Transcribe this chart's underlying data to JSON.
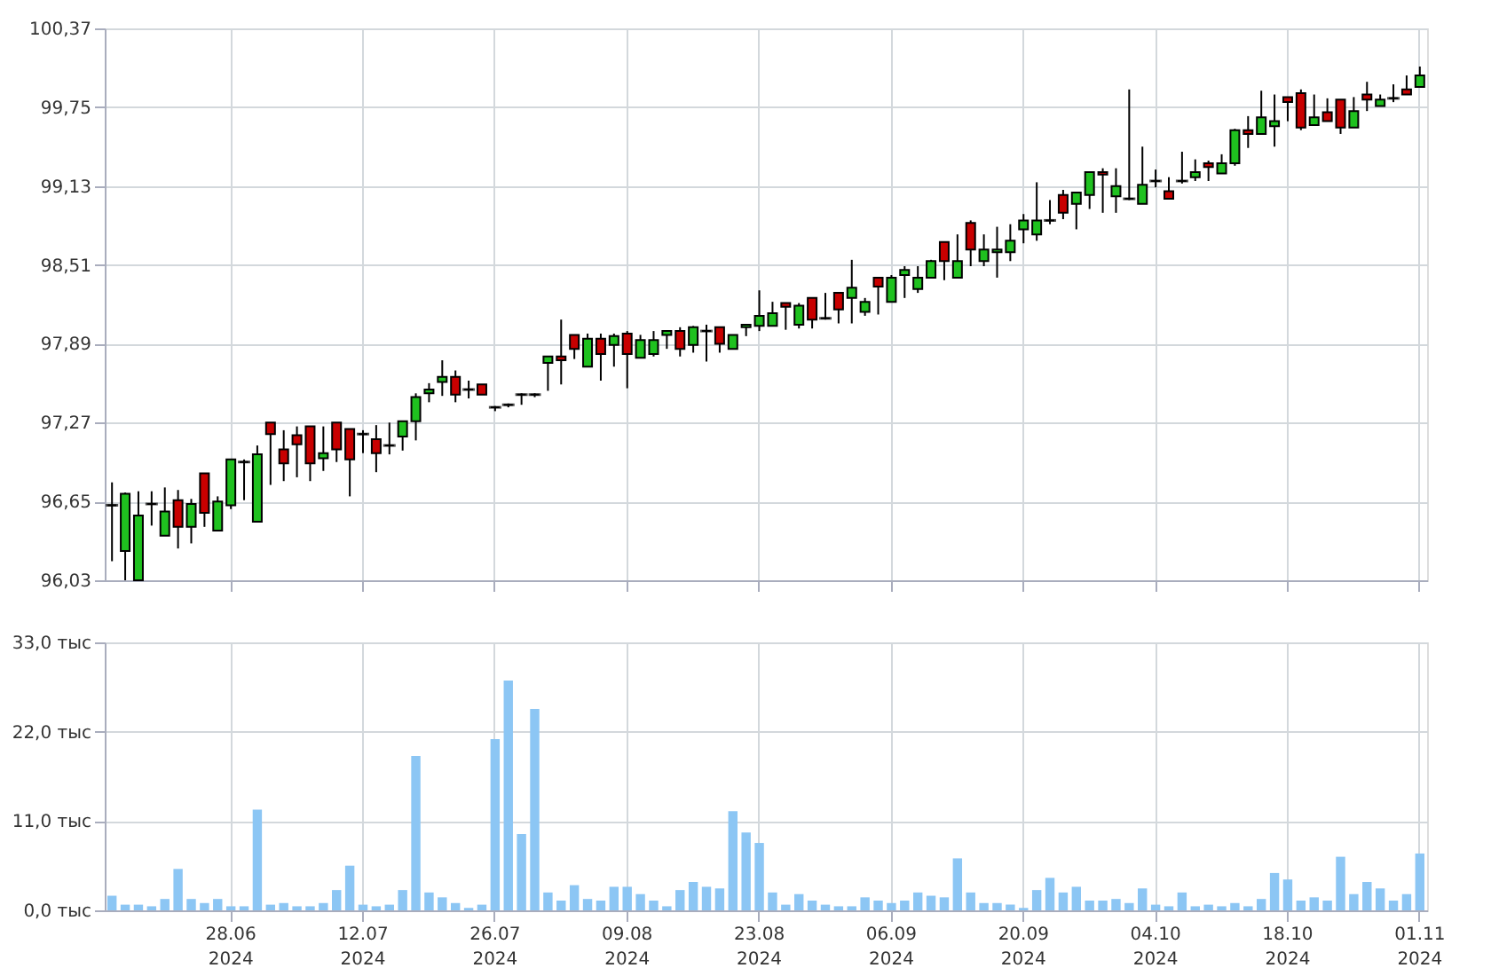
{
  "chart_data": [
    {
      "type": "candlestick",
      "tick_labels": "y",
      "grid": true,
      "categories": [
        null,
        null,
        null,
        null,
        null,
        null,
        null,
        null,
        null,
        null,
        null,
        null,
        null,
        null,
        null,
        null,
        null,
        null,
        null,
        null,
        null,
        null,
        null,
        null,
        null,
        null,
        null,
        null,
        null,
        null,
        null,
        null,
        null,
        null,
        null,
        null,
        null,
        null,
        null,
        null,
        null,
        null,
        null,
        null,
        null,
        null,
        null,
        null,
        null,
        null,
        null,
        null,
        null,
        null,
        null,
        null,
        null,
        null,
        null,
        null,
        null,
        null,
        null,
        null,
        null,
        null,
        null,
        null,
        null,
        null,
        null,
        null,
        null,
        null,
        null,
        null,
        null,
        null,
        null,
        null,
        null,
        null,
        null,
        null,
        null,
        null,
        null,
        null,
        null,
        null,
        null,
        null,
        null,
        null,
        null,
        null,
        null,
        null,
        null,
        null
      ],
      "ylim": [
        96.03,
        100.37
      ],
      "yticks": [
        {
          "value": 96.03,
          "label": "96,03"
        },
        {
          "value": 96.65,
          "label": "96,65"
        },
        {
          "value": 97.27,
          "label": "97,27"
        },
        {
          "value": 97.89,
          "label": "97,89"
        },
        {
          "value": 98.51,
          "label": "98,51"
        },
        {
          "value": 99.13,
          "label": "99,13"
        },
        {
          "value": 99.75,
          "label": "99,75"
        },
        {
          "value": 100.37,
          "label": "100,37"
        }
      ],
      "ohlc": [
        [
          96.62,
          96.8,
          96.18,
          96.62
        ],
        [
          96.26,
          96.72,
          96.03,
          96.71
        ],
        [
          96.03,
          96.73,
          96.03,
          96.54
        ],
        [
          96.63,
          96.73,
          96.46,
          96.63
        ],
        [
          96.38,
          96.76,
          96.38,
          96.57
        ],
        [
          96.66,
          96.74,
          96.28,
          96.45
        ],
        [
          96.45,
          96.67,
          96.32,
          96.63
        ],
        [
          96.87,
          96.87,
          96.45,
          96.56
        ],
        [
          96.42,
          96.69,
          96.42,
          96.65
        ],
        [
          96.62,
          96.98,
          96.59,
          96.98
        ],
        [
          96.96,
          96.98,
          96.66,
          96.96
        ],
        [
          96.49,
          97.09,
          96.49,
          97.02
        ],
        [
          97.27,
          97.27,
          96.78,
          97.18
        ],
        [
          97.06,
          97.21,
          96.81,
          96.95
        ],
        [
          97.17,
          97.24,
          96.84,
          97.1
        ],
        [
          97.24,
          97.24,
          96.81,
          96.95
        ],
        [
          96.99,
          97.24,
          96.89,
          97.03
        ],
        [
          97.27,
          97.27,
          96.96,
          97.06
        ],
        [
          97.22,
          97.22,
          96.69,
          96.98
        ],
        [
          97.18,
          97.21,
          97.03,
          97.18
        ],
        [
          97.14,
          97.25,
          96.88,
          97.03
        ],
        [
          97.09,
          97.27,
          97.02,
          97.09
        ],
        [
          97.16,
          97.28,
          97.05,
          97.28
        ],
        [
          97.28,
          97.5,
          97.13,
          97.47
        ],
        [
          97.5,
          97.58,
          97.43,
          97.53
        ],
        [
          97.59,
          97.76,
          97.48,
          97.63
        ],
        [
          97.63,
          97.68,
          97.43,
          97.49
        ],
        [
          97.53,
          97.6,
          97.46,
          97.53
        ],
        [
          97.57,
          97.57,
          97.49,
          97.49
        ],
        [
          97.39,
          97.4,
          97.36,
          97.39
        ],
        [
          97.41,
          97.42,
          97.39,
          97.41
        ],
        [
          97.49,
          97.5,
          97.41,
          97.49
        ],
        [
          97.49,
          97.5,
          97.47,
          97.49
        ],
        [
          97.74,
          97.79,
          97.52,
          97.79
        ],
        [
          97.79,
          98.08,
          97.57,
          97.76
        ],
        [
          97.96,
          97.96,
          97.77,
          97.85
        ],
        [
          97.71,
          97.97,
          97.71,
          97.93
        ],
        [
          97.93,
          97.97,
          97.6,
          97.81
        ],
        [
          97.88,
          97.97,
          97.71,
          97.95
        ],
        [
          97.97,
          97.99,
          97.54,
          97.81
        ],
        [
          97.78,
          97.96,
          97.78,
          97.92
        ],
        [
          97.81,
          97.99,
          97.79,
          97.92
        ],
        [
          97.96,
          97.99,
          97.85,
          97.99
        ],
        [
          97.99,
          98.02,
          97.79,
          97.85
        ],
        [
          97.88,
          98.03,
          97.82,
          98.02
        ],
        [
          97.99,
          98.04,
          97.75,
          97.99
        ],
        [
          98.02,
          98.02,
          97.82,
          97.89
        ],
        [
          97.85,
          97.96,
          97.85,
          97.96
        ],
        [
          98.02,
          98.04,
          97.95,
          98.04
        ],
        [
          98.03,
          98.31,
          97.99,
          98.11
        ],
        [
          98.03,
          98.22,
          98.03,
          98.13
        ],
        [
          98.21,
          98.21,
          98.0,
          98.18
        ],
        [
          98.04,
          98.21,
          98.01,
          98.19
        ],
        [
          98.25,
          98.25,
          98.01,
          98.08
        ],
        [
          98.09,
          98.29,
          98.08,
          98.09
        ],
        [
          98.29,
          98.29,
          98.05,
          98.16
        ],
        [
          98.25,
          98.55,
          98.05,
          98.33
        ],
        [
          98.14,
          98.25,
          98.11,
          98.22
        ],
        [
          98.41,
          98.41,
          98.12,
          98.34
        ],
        [
          98.22,
          98.43,
          98.22,
          98.41
        ],
        [
          98.43,
          98.5,
          98.25,
          98.47
        ],
        [
          98.32,
          98.5,
          98.29,
          98.41
        ],
        [
          98.41,
          98.55,
          98.41,
          98.54
        ],
        [
          98.69,
          98.69,
          98.39,
          98.54
        ],
        [
          98.41,
          98.75,
          98.41,
          98.54
        ],
        [
          98.84,
          98.86,
          98.5,
          98.63
        ],
        [
          98.54,
          98.75,
          98.5,
          98.63
        ],
        [
          98.61,
          98.81,
          98.41,
          98.63
        ],
        [
          98.61,
          98.83,
          98.54,
          98.7
        ],
        [
          98.79,
          98.91,
          98.68,
          98.86
        ],
        [
          98.75,
          99.16,
          98.7,
          98.86
        ],
        [
          98.86,
          99.02,
          98.83,
          98.86
        ],
        [
          99.06,
          99.1,
          98.87,
          98.92
        ],
        [
          98.99,
          99.08,
          98.79,
          99.08
        ],
        [
          99.06,
          99.24,
          98.95,
          99.24
        ],
        [
          99.24,
          99.27,
          98.92,
          99.22
        ],
        [
          99.05,
          99.27,
          98.92,
          99.13
        ],
        [
          99.03,
          99.89,
          99.02,
          99.03
        ],
        [
          98.99,
          99.44,
          98.99,
          99.14
        ],
        [
          99.17,
          99.26,
          99.12,
          99.17
        ],
        [
          99.09,
          99.2,
          99.03,
          99.03
        ],
        [
          99.17,
          99.4,
          99.15,
          99.17
        ],
        [
          99.2,
          99.34,
          99.17,
          99.24
        ],
        [
          99.31,
          99.33,
          99.17,
          99.28
        ],
        [
          99.23,
          99.38,
          99.23,
          99.31
        ],
        [
          99.31,
          99.58,
          99.29,
          99.57
        ],
        [
          99.57,
          99.68,
          99.43,
          99.54
        ],
        [
          99.54,
          99.88,
          99.54,
          99.67
        ],
        [
          99.6,
          99.85,
          99.44,
          99.64
        ],
        [
          99.83,
          99.83,
          99.64,
          99.79
        ],
        [
          99.86,
          99.89,
          99.57,
          99.59
        ],
        [
          99.61,
          99.85,
          99.61,
          99.67
        ],
        [
          99.71,
          99.82,
          99.64,
          99.64
        ],
        [
          99.81,
          99.81,
          99.54,
          99.59
        ],
        [
          99.59,
          99.83,
          99.59,
          99.72
        ],
        [
          99.85,
          99.95,
          99.72,
          99.81
        ],
        [
          99.76,
          99.85,
          99.76,
          99.81
        ],
        [
          99.82,
          99.93,
          99.79,
          99.82
        ],
        [
          99.89,
          100.0,
          99.85,
          99.85
        ],
        [
          99.91,
          100.07,
          99.91,
          100.0
        ]
      ],
      "colors": [
        "#000000",
        "#1fc11f",
        "#1fc11f",
        "#000000",
        "#1fc11f",
        "#c80000",
        "#1fc11f",
        "#c80000",
        "#1fc11f",
        "#1fc11f",
        "#000000",
        "#1fc11f",
        "#c80000",
        "#c80000",
        "#c80000",
        "#c80000",
        "#1fc11f",
        "#c80000",
        "#c80000",
        "#000000",
        "#c80000",
        "#000000",
        "#1fc11f",
        "#1fc11f",
        "#1fc11f",
        "#1fc11f",
        "#c80000",
        "#000000",
        "#c80000",
        "#000000",
        "#000000",
        "#000000",
        "#000000",
        "#1fc11f",
        "#c80000",
        "#c80000",
        "#1fc11f",
        "#c80000",
        "#1fc11f",
        "#c80000",
        "#1fc11f",
        "#1fc11f",
        "#1fc11f",
        "#c80000",
        "#1fc11f",
        "#000000",
        "#c80000",
        "#1fc11f",
        "#1fc11f",
        "#1fc11f",
        "#1fc11f",
        "#c80000",
        "#1fc11f",
        "#c80000",
        "#000000",
        "#c80000",
        "#1fc11f",
        "#1fc11f",
        "#c80000",
        "#1fc11f",
        "#1fc11f",
        "#1fc11f",
        "#1fc11f",
        "#c80000",
        "#1fc11f",
        "#c80000",
        "#1fc11f",
        "#1fc11f",
        "#1fc11f",
        "#1fc11f",
        "#1fc11f",
        "#000000",
        "#c80000",
        "#1fc11f",
        "#1fc11f",
        "#c80000",
        "#1fc11f",
        "#000000",
        "#1fc11f",
        "#000000",
        "#c80000",
        "#000000",
        "#1fc11f",
        "#c80000",
        "#1fc11f",
        "#1fc11f",
        "#c80000",
        "#1fc11f",
        "#1fc11f",
        "#c80000",
        "#c80000",
        "#1fc11f",
        "#c80000",
        "#c80000",
        "#1fc11f",
        "#c80000",
        "#1fc11f",
        "#000000",
        "#c80000",
        "#1fc11f"
      ]
    },
    {
      "type": "bar",
      "grid": true,
      "color": "#8cc6f4",
      "categories": [
        null,
        null,
        null,
        null,
        null,
        null,
        null,
        null,
        null,
        "28.06 2024",
        null,
        null,
        null,
        null,
        null,
        null,
        null,
        null,
        null,
        "12.07 2024",
        null,
        null,
        null,
        null,
        null,
        null,
        null,
        null,
        null,
        "26.07 2024",
        null,
        null,
        null,
        null,
        null,
        null,
        null,
        null,
        null,
        "09.08 2024",
        null,
        null,
        null,
        null,
        null,
        null,
        null,
        null,
        null,
        "23.08 2024",
        null,
        null,
        null,
        null,
        null,
        null,
        null,
        null,
        null,
        "06.09 2024",
        null,
        null,
        null,
        null,
        null,
        null,
        null,
        null,
        null,
        "20.09 2024",
        null,
        null,
        null,
        null,
        null,
        null,
        null,
        null,
        null,
        "04.10 2024",
        null,
        null,
        null,
        null,
        null,
        null,
        null,
        null,
        null,
        "18.10 2024",
        null,
        null,
        null,
        null,
        null,
        null,
        null,
        null,
        null,
        "01.11 2024"
      ],
      "ylim": [
        0,
        33
      ],
      "yticks": [
        {
          "value": 0,
          "label": "0,0 тыс"
        },
        {
          "value": 11,
          "label": "11,0 тыс"
        },
        {
          "value": 22,
          "label": "22,0 тыс"
        },
        {
          "value": 33,
          "label": "33,0 тыс"
        }
      ],
      "values": [
        1.8,
        0.7,
        0.7,
        0.5,
        1.4,
        5.1,
        1.4,
        0.9,
        1.4,
        0.5,
        0.5,
        12.4,
        0.7,
        0.9,
        0.5,
        0.5,
        0.9,
        2.5,
        5.5,
        0.7,
        0.5,
        0.7,
        2.5,
        19.0,
        2.2,
        1.6,
        0.9,
        0.3,
        0.7,
        21.1,
        28.3,
        9.4,
        24.8,
        2.2,
        1.2,
        3.1,
        1.4,
        1.2,
        2.9,
        2.9,
        2.0,
        1.2,
        0.5,
        2.5,
        3.5,
        2.9,
        2.7,
        12.2,
        9.6,
        8.3,
        2.2,
        0.7,
        2.0,
        1.2,
        0.7,
        0.5,
        0.5,
        1.6,
        1.2,
        0.9,
        1.2,
        2.2,
        1.8,
        1.6,
        6.4,
        2.2,
        0.9,
        0.9,
        0.7,
        0.3,
        2.5,
        4.0,
        2.2,
        2.9,
        1.2,
        1.2,
        1.4,
        0.9,
        2.7,
        0.7,
        0.5,
        2.2,
        0.5,
        0.7,
        0.5,
        0.9,
        0.5,
        1.4,
        4.6,
        3.8,
        1.2,
        1.6,
        1.2,
        6.6,
        2.0,
        3.5,
        2.7,
        1.2,
        2.0,
        7.0
      ]
    }
  ]
}
